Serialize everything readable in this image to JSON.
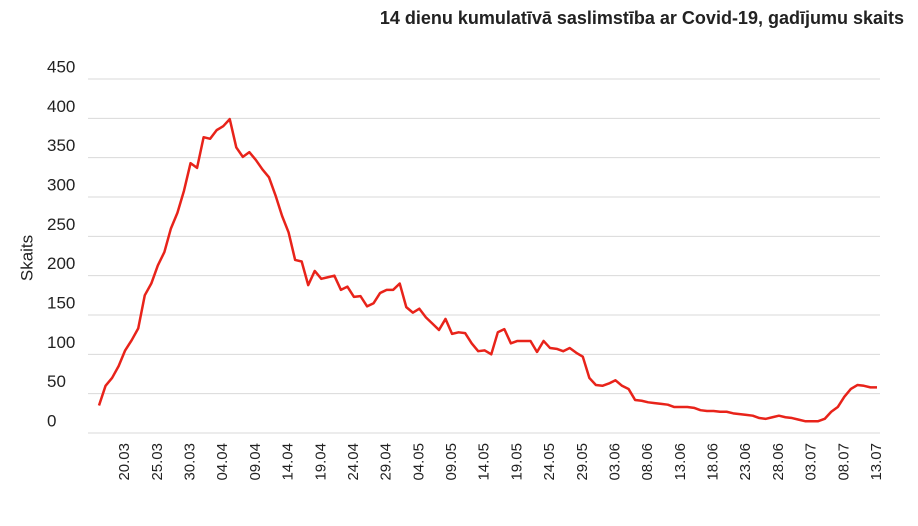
{
  "chart_data": {
    "type": "line",
    "title": "14 dienu kumulatīvā saslimstība ar Covid-19, gadījumu skaits",
    "y_label": "Skaits",
    "color": "#e8231a",
    "grid": true,
    "ylim": [
      0,
      450
    ],
    "yticks": [
      0,
      50,
      100,
      150,
      200,
      250,
      300,
      350,
      400,
      450
    ],
    "categories": [
      null,
      null,
      null,
      null,
      "20.03",
      null,
      null,
      null,
      null,
      "25.03",
      null,
      null,
      null,
      null,
      "30.03",
      null,
      null,
      null,
      null,
      "04.04",
      null,
      null,
      null,
      null,
      "09.04",
      null,
      null,
      null,
      null,
      "14.04",
      null,
      null,
      null,
      null,
      "19.04",
      null,
      null,
      null,
      null,
      "24.04",
      null,
      null,
      null,
      null,
      "29.04",
      null,
      null,
      null,
      null,
      "04.05",
      null,
      null,
      null,
      null,
      "09.05",
      null,
      null,
      null,
      null,
      "14.05",
      null,
      null,
      null,
      null,
      "19.05",
      null,
      null,
      null,
      null,
      "24.05",
      null,
      null,
      null,
      null,
      "29.05",
      null,
      null,
      null,
      null,
      "03.06",
      null,
      null,
      null,
      null,
      "08.06",
      null,
      null,
      null,
      null,
      "13.06",
      null,
      null,
      null,
      null,
      "18.06",
      null,
      null,
      null,
      null,
      "23.06",
      null,
      null,
      null,
      null,
      "28.06",
      null,
      null,
      null,
      null,
      "03.07",
      null,
      null,
      null,
      null,
      "08.07",
      null,
      null,
      null,
      null,
      "13.07"
    ],
    "values": [
      35,
      60,
      70,
      85,
      105,
      118,
      133,
      175,
      190,
      213,
      230,
      260,
      280,
      308,
      343,
      337,
      376,
      374,
      385,
      390,
      399,
      363,
      351,
      357,
      347,
      335,
      325,
      302,
      276,
      255,
      220,
      218,
      188,
      206,
      196,
      198,
      200,
      182,
      186,
      173,
      174,
      161,
      165,
      178,
      182,
      182,
      190,
      160,
      153,
      158,
      147,
      139,
      131,
      145,
      126,
      128,
      127,
      114,
      104,
      105,
      100,
      128,
      132,
      114,
      117,
      117,
      117,
      103,
      117,
      108,
      107,
      104,
      108,
      102,
      97,
      70,
      61,
      60,
      63,
      67,
      60,
      56,
      42,
      41,
      39,
      38,
      37,
      36,
      33,
      33,
      33,
      32,
      29,
      28,
      28,
      27,
      27,
      25,
      24,
      23,
      22,
      19,
      18,
      20,
      22,
      20,
      19,
      17,
      15,
      15,
      15,
      18,
      27,
      33,
      46,
      56,
      61,
      60,
      58,
      58
    ]
  }
}
